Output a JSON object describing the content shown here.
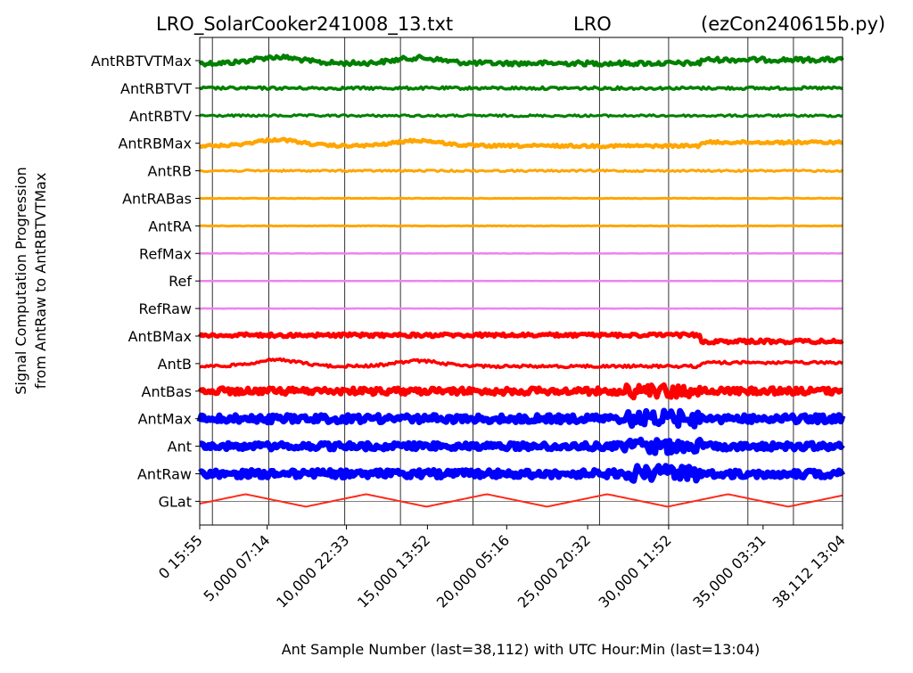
{
  "chart_data": {
    "type": "line",
    "title_left": "LRO_SolarCooker241008_13.txt",
    "title_center": "LRO",
    "title_right": "(ezCon240615b.py)",
    "xlabel": "Ant Sample Number (last=38,112) with UTC Hour:Min (last=13:04)",
    "ylabel_line1": "Signal Computation Progression",
    "ylabel_line2": "from AntRaw to AntRBTVTMax",
    "xlim": [
      0,
      38112
    ],
    "x_ticks": [
      {
        "value": 0,
        "label": "0  15:55"
      },
      {
        "value": 4000,
        "label": "5,000  07:14"
      },
      {
        "value": 8700,
        "label": "10,000  22:33"
      },
      {
        "value": 13500,
        "label": "15,000  13:52"
      },
      {
        "value": 18200,
        "label": "20,000  05:16"
      },
      {
        "value": 23000,
        "label": "25,000  20:32"
      },
      {
        "value": 27800,
        "label": "30,000  11:52"
      },
      {
        "value": 33400,
        "label": "35,000  03:31"
      },
      {
        "value": 38112,
        "label": "38,112  13:04"
      }
    ],
    "day_boundaries": [
      750,
      4100,
      8600,
      11900,
      16200,
      23700,
      27800,
      32500,
      35200
    ],
    "colors": {
      "green": "#008000",
      "orange": "#ffa500",
      "violet": "#ee82ee",
      "red": "#ff0000",
      "blue": "#0000ff",
      "glat": "#ff2a1a"
    },
    "series": [
      {
        "name": "AntRBTVTMax",
        "color": "green",
        "kind": "wave",
        "noise": 2.5,
        "width": 4.5
      },
      {
        "name": "AntRBTVT",
        "color": "green",
        "kind": "flat",
        "noise": 1.5,
        "width": 3.5
      },
      {
        "name": "AntRBTV",
        "color": "green",
        "kind": "flat",
        "noise": 1.2,
        "width": 3
      },
      {
        "name": "AntRBMax",
        "color": "orange",
        "kind": "wave",
        "noise": 1.5,
        "width": 4.5
      },
      {
        "name": "AntRB",
        "color": "orange",
        "kind": "flat",
        "noise": 1.0,
        "width": 3
      },
      {
        "name": "AntRABas",
        "color": "orange",
        "kind": "flat",
        "noise": 0.3,
        "width": 3
      },
      {
        "name": "AntRA",
        "color": "orange",
        "kind": "flat",
        "noise": 0.3,
        "width": 3
      },
      {
        "name": "RefMax",
        "color": "violet",
        "kind": "flat",
        "noise": 0.2,
        "width": 2.5
      },
      {
        "name": "Ref",
        "color": "violet",
        "kind": "flat",
        "noise": 0.1,
        "width": 2.5
      },
      {
        "name": "RefRaw",
        "color": "violet",
        "kind": "flat",
        "noise": 0.1,
        "width": 2.5
      },
      {
        "name": "AntBMax",
        "color": "red",
        "kind": "step",
        "noise": 2.0,
        "width": 5
      },
      {
        "name": "AntB",
        "color": "red",
        "kind": "wave",
        "noise": 1.5,
        "width": 3.5
      },
      {
        "name": "AntBas",
        "color": "red",
        "kind": "noisy",
        "noise": 3.5,
        "width": 6
      },
      {
        "name": "AntMax",
        "color": "blue",
        "kind": "noisy",
        "noise": 4.0,
        "width": 7
      },
      {
        "name": "Ant",
        "color": "blue",
        "kind": "noisy",
        "noise": 3.5,
        "width": 7
      },
      {
        "name": "AntRaw",
        "color": "blue",
        "kind": "noisy",
        "noise": 4.0,
        "width": 7
      },
      {
        "name": "GLat",
        "color": "glat",
        "kind": "glat",
        "noise": 0,
        "width": 2
      }
    ]
  }
}
